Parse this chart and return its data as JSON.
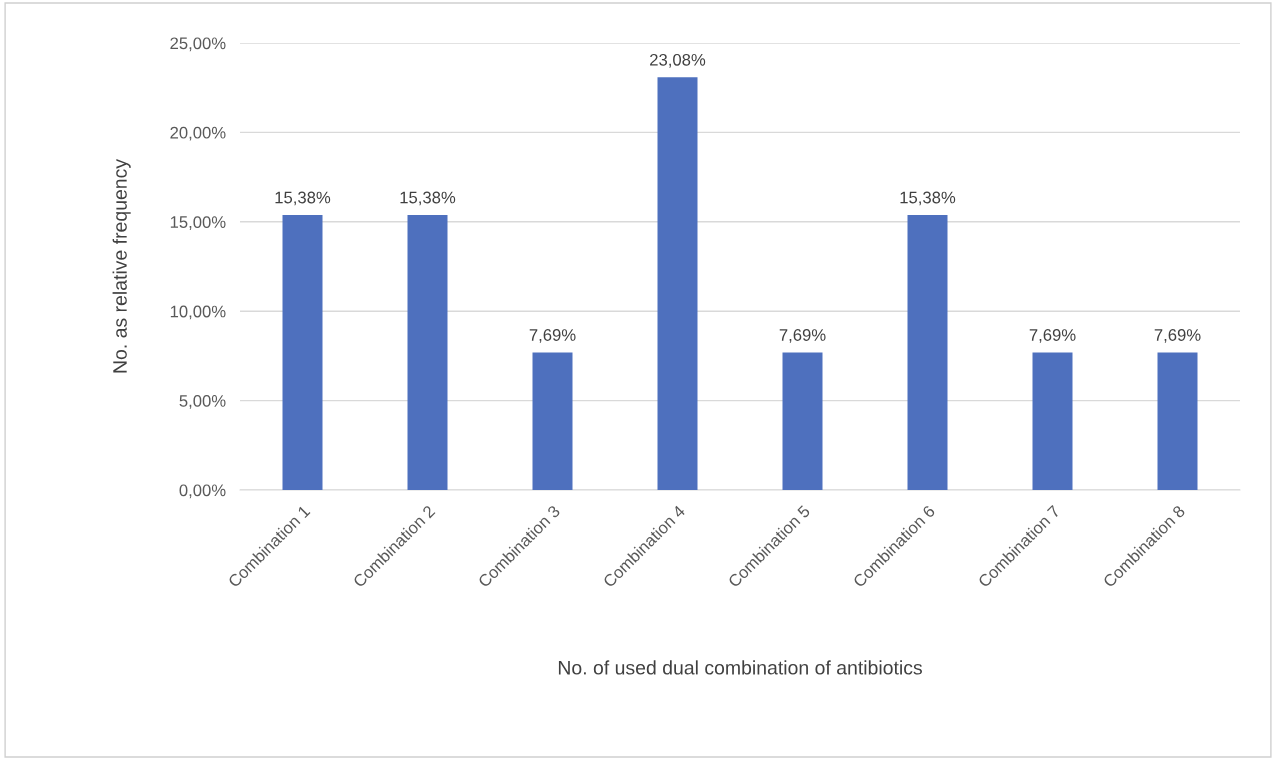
{
  "chart_data": {
    "type": "bar",
    "xlabel": "No. of used dual combination of antibiotics",
    "ylabel": "No. as relative frequency",
    "categories": [
      "Combination 1",
      "Combination 2",
      "Combination 3",
      "Combination 4",
      "Combination 5",
      "Combination 6",
      "Combination 7",
      "Combination 8"
    ],
    "values": [
      15.38,
      15.38,
      7.69,
      23.08,
      7.69,
      15.38,
      7.69,
      7.69
    ],
    "value_labels": [
      "15,38%",
      "15,38%",
      "7,69%",
      "23,08%",
      "7,69%",
      "15,38%",
      "7,69%",
      "7,69%"
    ],
    "color": "#4e70be",
    "ylim": [
      0,
      25
    ],
    "yticks": [
      {
        "value": 0,
        "label": "0,00%"
      },
      {
        "value": 5,
        "label": "5,00%"
      },
      {
        "value": 10,
        "label": "10,00%"
      },
      {
        "value": 15,
        "label": "15,00%"
      },
      {
        "value": 20,
        "label": "20,00%"
      },
      {
        "value": 25,
        "label": "25,00%"
      }
    ],
    "grid": "y",
    "legend": false
  }
}
